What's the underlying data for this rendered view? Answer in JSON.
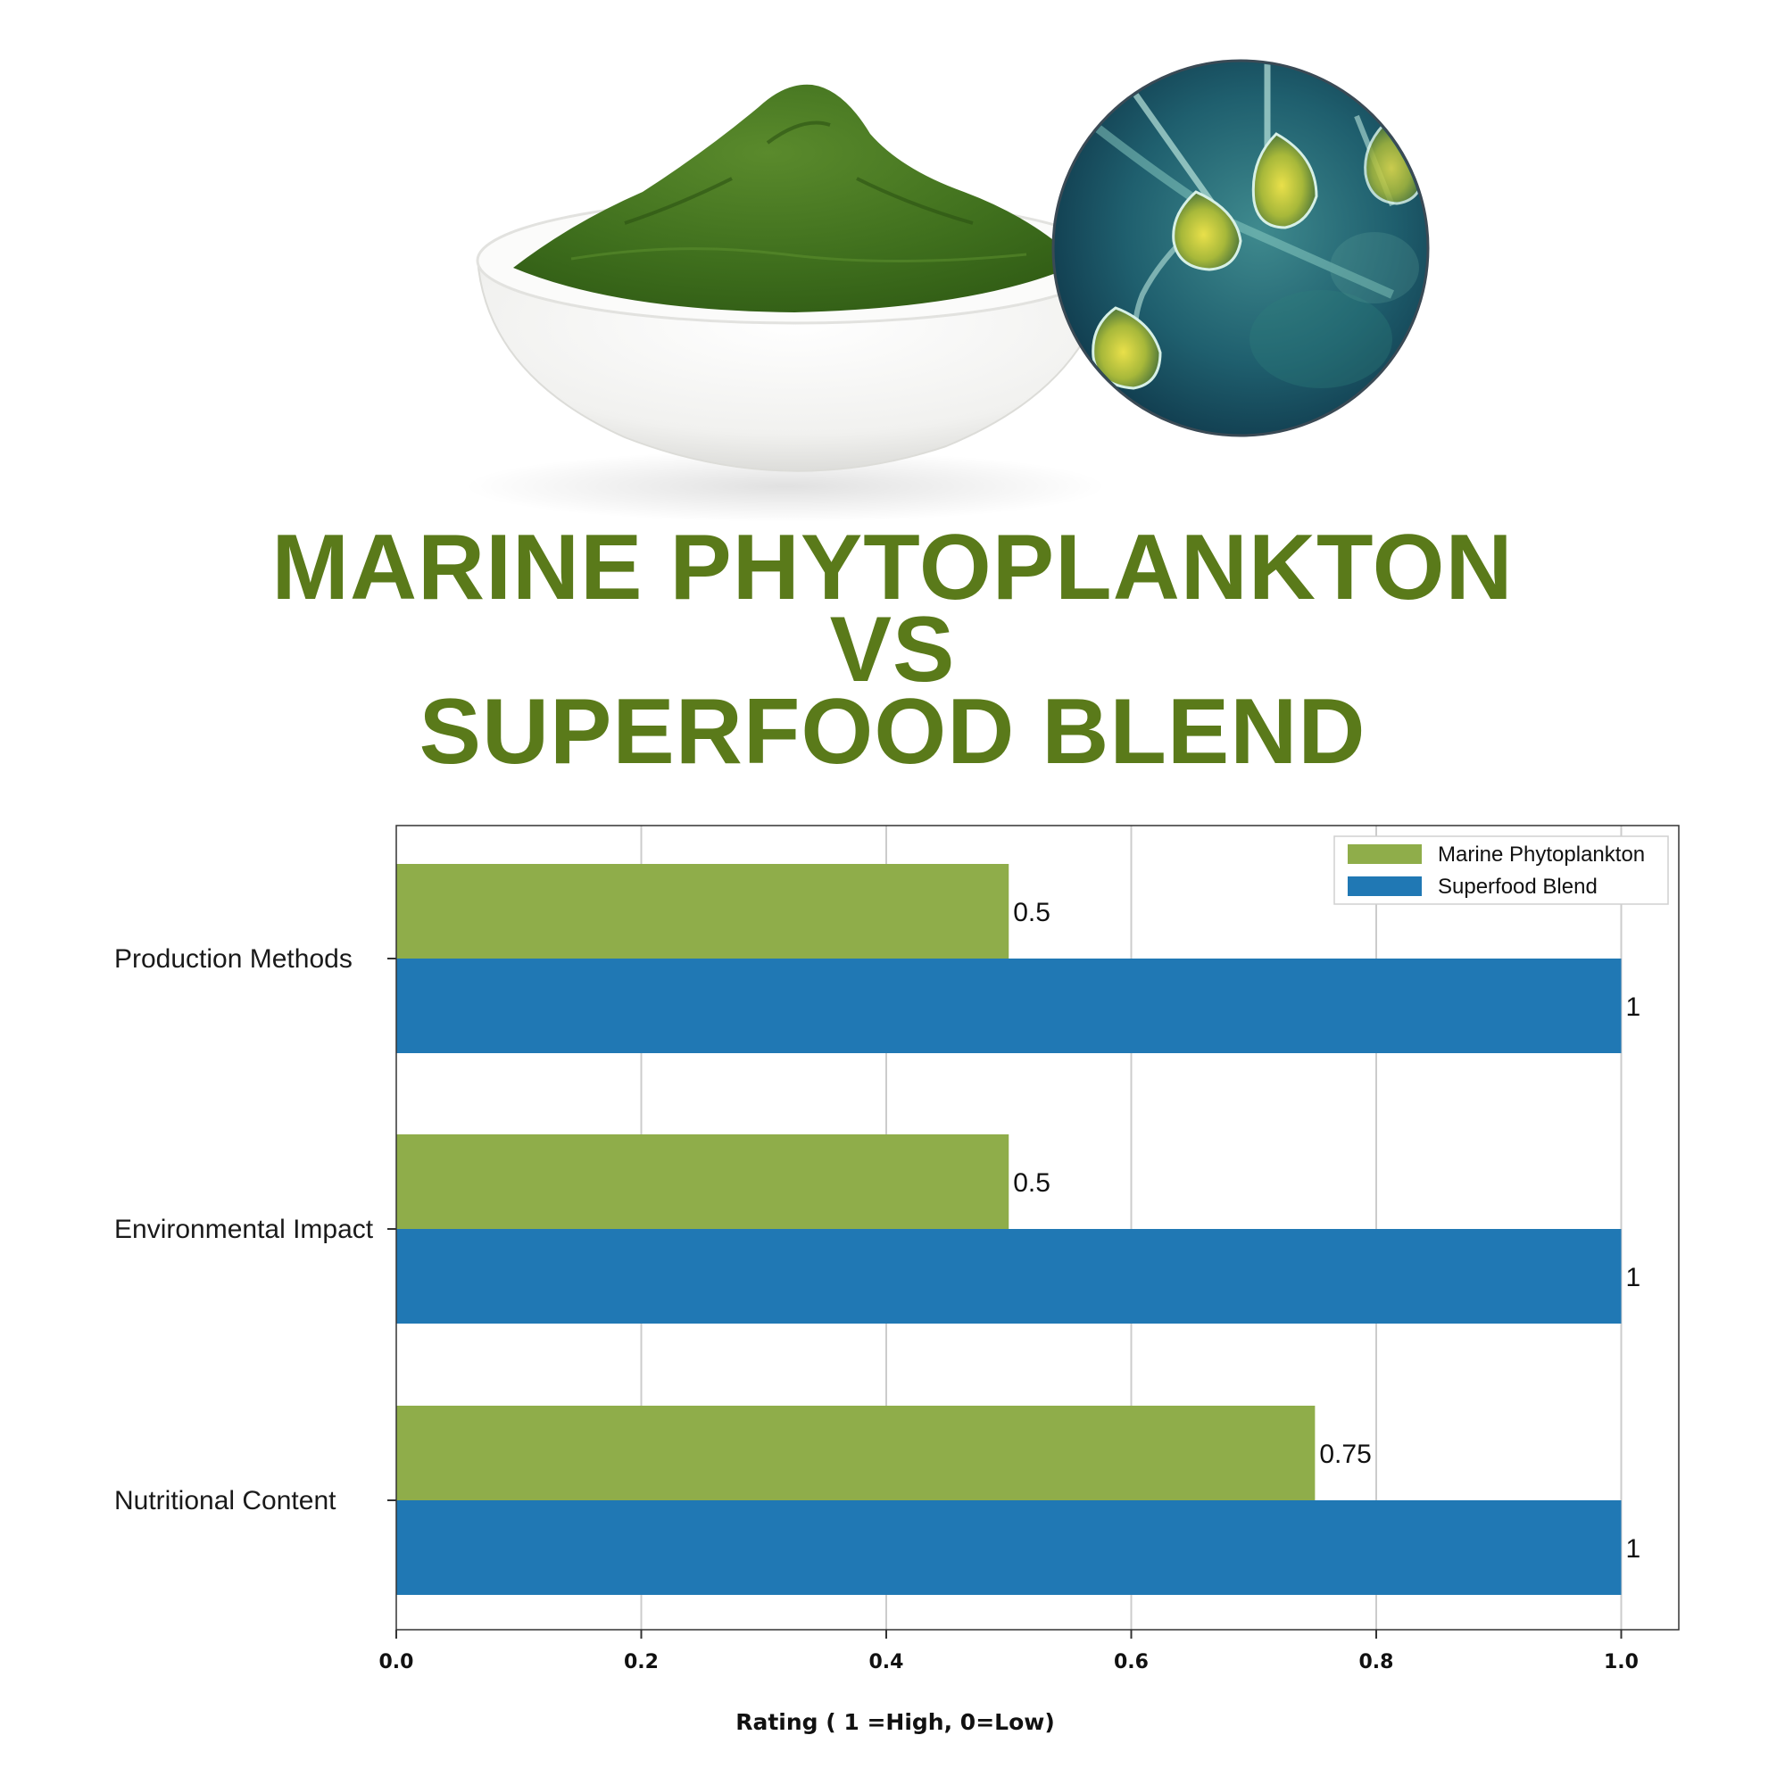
{
  "header": {
    "title_lines": [
      "MARINE PHYTOPLANKTON",
      "VS",
      "SUPERFOOD BLEND"
    ]
  },
  "colors": {
    "title": "#5a7a1a",
    "marine": "#8fad4a",
    "superfood": "#2078b4",
    "grid": "#cccccc",
    "axis": "#333333"
  },
  "illustrations": {
    "left": "green-powder-bowl-icon",
    "right": "phytoplankton-microscope-icon"
  },
  "chart_data": {
    "type": "bar",
    "orientation": "horizontal",
    "categories": [
      "Production Methods",
      "Environmental Impact",
      "Nutritional Content"
    ],
    "series": [
      {
        "name": "Marine Phytoplankton",
        "values": [
          0.5,
          0.5,
          0.75
        ],
        "labels": [
          "0.5",
          "0.5",
          "0.75"
        ]
      },
      {
        "name": "Superfood Blend",
        "values": [
          1,
          1,
          1
        ],
        "labels": [
          "1",
          "1",
          "1"
        ]
      }
    ],
    "xlabel": "Rating ( 1 =High, 0=Low)",
    "xlim": [
      0,
      1.047
    ],
    "xticks": [
      "0.0",
      "0.2",
      "0.4",
      "0.6",
      "0.8",
      "1.0"
    ],
    "xtick_values": [
      0,
      0.2,
      0.4,
      0.6,
      0.8,
      1.0
    ],
    "grid": true,
    "legend": "top-right"
  }
}
